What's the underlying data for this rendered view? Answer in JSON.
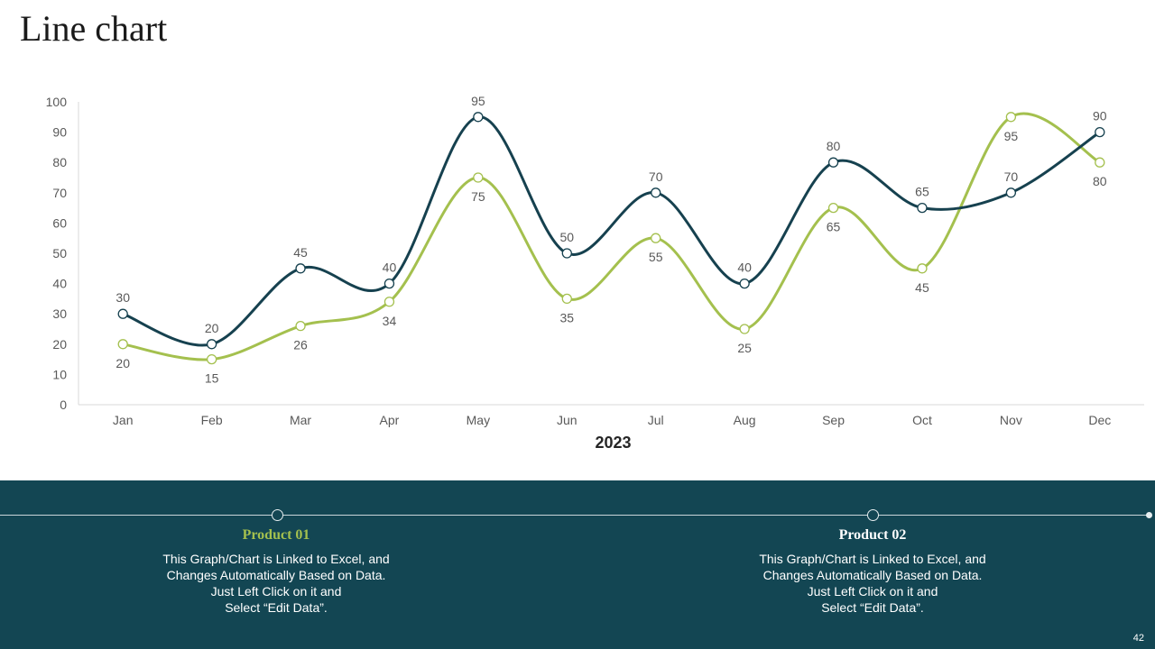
{
  "slide": {
    "title": "Line chart",
    "page_number": "42"
  },
  "colors": {
    "product01": "#a4c04e",
    "product02": "#16414f",
    "panel_bg": "#134653"
  },
  "chart_data": {
    "type": "line",
    "smooth": true,
    "title": "",
    "xlabel": "2023",
    "ylabel": "",
    "ylim": [
      0,
      100
    ],
    "yticks": [
      0,
      10,
      20,
      30,
      40,
      50,
      60,
      70,
      80,
      90,
      100
    ],
    "grid": false,
    "categories": [
      "Jan",
      "Feb",
      "Mar",
      "Apr",
      "May",
      "Jun",
      "Jul",
      "Aug",
      "Sep",
      "Oct",
      "Nov",
      "Dec"
    ],
    "series": [
      {
        "name": "Product 01",
        "values": [
          20,
          15,
          26,
          34,
          75,
          35,
          55,
          25,
          65,
          45,
          95,
          80
        ],
        "label_position": "below"
      },
      {
        "name": "Product 02",
        "values": [
          30,
          20,
          45,
          40,
          95,
          50,
          70,
          40,
          80,
          65,
          70,
          90
        ],
        "label_position": "above"
      }
    ]
  },
  "products": [
    {
      "title": "Product 01",
      "description": "This Graph/Chart is Linked to Excel, and\nChanges Automatically Based on Data.\nJust Left Click on it and\nSelect “Edit Data”."
    },
    {
      "title": "Product 02",
      "description": "This Graph/Chart is Linked to Excel, and\nChanges Automatically Based on Data.\nJust Left Click on it and\nSelect “Edit Data”."
    }
  ]
}
